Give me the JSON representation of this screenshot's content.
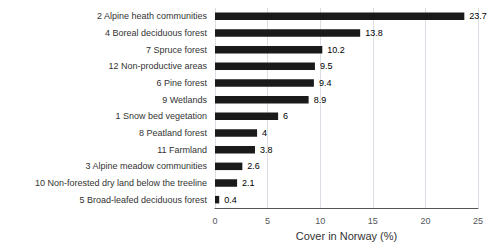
{
  "chart_data": {
    "type": "bar",
    "orientation": "horizontal",
    "categories": [
      "5 Broad-leafed deciduous forest",
      "10 Non-forested dry land below the treeline",
      "3 Alpine meadow communities",
      "11 Farmland",
      "8 Peatland forest",
      "1 Snow bed vegetation",
      "9 Wetlands",
      "6 Pine forest",
      "12 Non-productive areas",
      "7 Spruce forest",
      "4 Boreal deciduous forest",
      "2 Alpine heath communities"
    ],
    "values": [
      0.4,
      2.1,
      2.6,
      3.8,
      4.0,
      6.0,
      8.9,
      9.4,
      9.5,
      10.2,
      13.8,
      23.7
    ],
    "color": "#1a1a1a",
    "xlabel": "Cover in Norway (%)",
    "xlim": [
      0,
      25
    ],
    "xticks": [
      0,
      5,
      10,
      15,
      20,
      25
    ],
    "grid": true,
    "data_labels": true
  }
}
